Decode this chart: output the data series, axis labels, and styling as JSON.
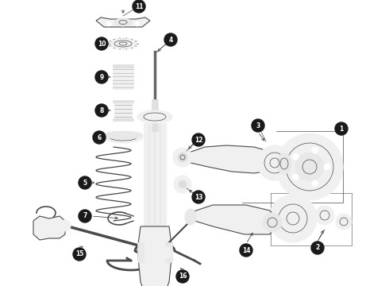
{
  "background_color": "#ffffff",
  "line_color": "#4a4a4a",
  "label_bg": "#1a1a1a",
  "label_fg": "#ffffff",
  "part_fill": "#f0f0f0",
  "part_edge": "#4a4a4a",
  "figsize": [
    4.9,
    3.6
  ],
  "dpi": 100,
  "xlim": [
    0,
    490
  ],
  "ylim": [
    0,
    360
  ]
}
